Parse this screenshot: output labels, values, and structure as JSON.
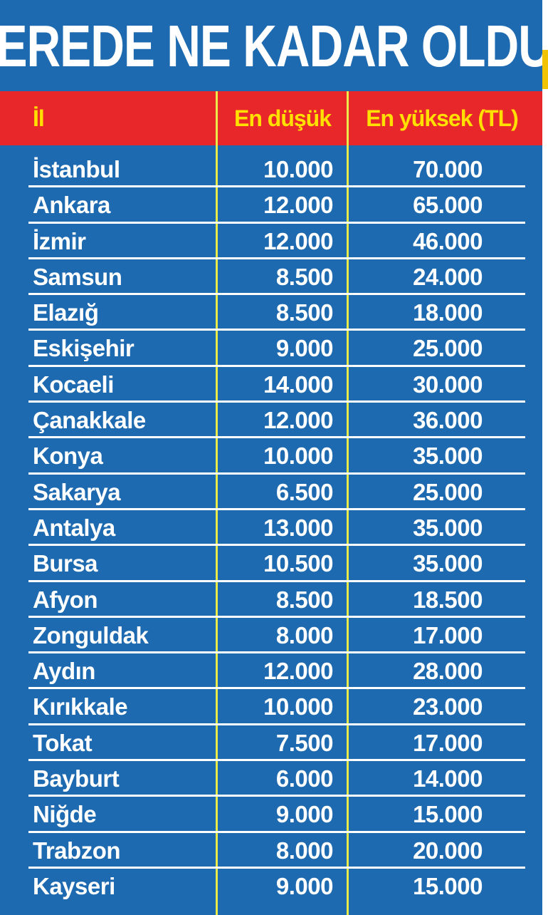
{
  "title": "NEREDE NE KADAR OLDU?",
  "colors": {
    "panel": "#1e6ab0",
    "header": "#e8272a",
    "header_text": "#ffe000",
    "text": "#ffffff",
    "divider": "#e9e94a"
  },
  "table": {
    "headers": {
      "il": "İl",
      "low": "En düşük",
      "high": "En yüksek (TL)"
    },
    "rows": [
      {
        "il": "İstanbul",
        "low": "10.000",
        "high": "70.000"
      },
      {
        "il": "Ankara",
        "low": "12.000",
        "high": "65.000"
      },
      {
        "il": "İzmir",
        "low": "12.000",
        "high": "46.000"
      },
      {
        "il": "Samsun",
        "low": "8.500",
        "high": "24.000"
      },
      {
        "il": "Elazığ",
        "low": "8.500",
        "high": "18.000"
      },
      {
        "il": "Eskişehir",
        "low": "9.000",
        "high": "25.000"
      },
      {
        "il": "Kocaeli",
        "low": "14.000",
        "high": "30.000"
      },
      {
        "il": "Çanakkale",
        "low": "12.000",
        "high": "36.000"
      },
      {
        "il": "Konya",
        "low": "10.000",
        "high": "35.000"
      },
      {
        "il": "Sakarya",
        "low": "6.500",
        "high": "25.000"
      },
      {
        "il": "Antalya",
        "low": "13.000",
        "high": "35.000"
      },
      {
        "il": "Bursa",
        "low": "10.500",
        "high": "35.000"
      },
      {
        "il": "Afyon",
        "low": "8.500",
        "high": "18.500"
      },
      {
        "il": "Zonguldak",
        "low": "8.000",
        "high": "17.000"
      },
      {
        "il": "Aydın",
        "low": "12.000",
        "high": "28.000"
      },
      {
        "il": "Kırıkkale",
        "low": "10.000",
        "high": "23.000"
      },
      {
        "il": "Tokat",
        "low": "7.500",
        "high": "17.000"
      },
      {
        "il": "Bayburt",
        "low": "6.000",
        "high": "14.000"
      },
      {
        "il": "Niğde",
        "low": "9.000",
        "high": "15.000"
      },
      {
        "il": "Trabzon",
        "low": "8.000",
        "high": "20.000"
      },
      {
        "il": "Kayseri",
        "low": "9.000",
        "high": "15.000"
      }
    ]
  }
}
